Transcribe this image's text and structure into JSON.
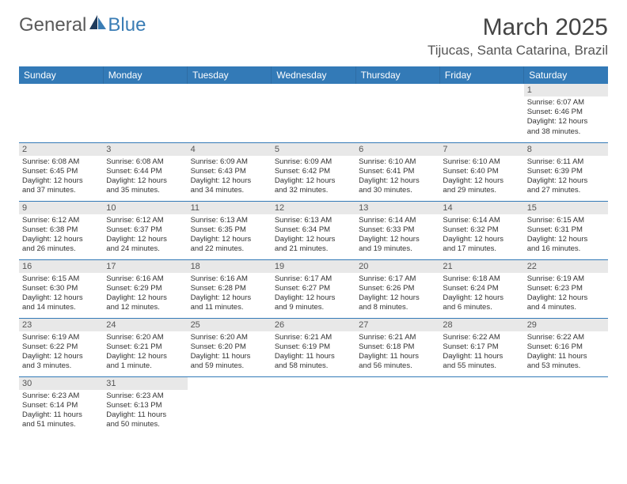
{
  "brand": {
    "part1": "General",
    "part2": "Blue"
  },
  "title": "March 2025",
  "location": "Tijucas, Santa Catarina, Brazil",
  "weekdays": [
    "Sunday",
    "Monday",
    "Tuesday",
    "Wednesday",
    "Thursday",
    "Friday",
    "Saturday"
  ],
  "colors": {
    "header_bg": "#337ab7",
    "header_text": "#ffffff",
    "daynum_bg": "#e8e8e8",
    "border": "#337ab7",
    "brand_blue": "#3a7db5"
  },
  "weeks": [
    [
      null,
      null,
      null,
      null,
      null,
      null,
      {
        "n": "1",
        "sr": "Sunrise: 6:07 AM",
        "ss": "Sunset: 6:46 PM",
        "d1": "Daylight: 12 hours",
        "d2": "and 38 minutes."
      }
    ],
    [
      {
        "n": "2",
        "sr": "Sunrise: 6:08 AM",
        "ss": "Sunset: 6:45 PM",
        "d1": "Daylight: 12 hours",
        "d2": "and 37 minutes."
      },
      {
        "n": "3",
        "sr": "Sunrise: 6:08 AM",
        "ss": "Sunset: 6:44 PM",
        "d1": "Daylight: 12 hours",
        "d2": "and 35 minutes."
      },
      {
        "n": "4",
        "sr": "Sunrise: 6:09 AM",
        "ss": "Sunset: 6:43 PM",
        "d1": "Daylight: 12 hours",
        "d2": "and 34 minutes."
      },
      {
        "n": "5",
        "sr": "Sunrise: 6:09 AM",
        "ss": "Sunset: 6:42 PM",
        "d1": "Daylight: 12 hours",
        "d2": "and 32 minutes."
      },
      {
        "n": "6",
        "sr": "Sunrise: 6:10 AM",
        "ss": "Sunset: 6:41 PM",
        "d1": "Daylight: 12 hours",
        "d2": "and 30 minutes."
      },
      {
        "n": "7",
        "sr": "Sunrise: 6:10 AM",
        "ss": "Sunset: 6:40 PM",
        "d1": "Daylight: 12 hours",
        "d2": "and 29 minutes."
      },
      {
        "n": "8",
        "sr": "Sunrise: 6:11 AM",
        "ss": "Sunset: 6:39 PM",
        "d1": "Daylight: 12 hours",
        "d2": "and 27 minutes."
      }
    ],
    [
      {
        "n": "9",
        "sr": "Sunrise: 6:12 AM",
        "ss": "Sunset: 6:38 PM",
        "d1": "Daylight: 12 hours",
        "d2": "and 26 minutes."
      },
      {
        "n": "10",
        "sr": "Sunrise: 6:12 AM",
        "ss": "Sunset: 6:37 PM",
        "d1": "Daylight: 12 hours",
        "d2": "and 24 minutes."
      },
      {
        "n": "11",
        "sr": "Sunrise: 6:13 AM",
        "ss": "Sunset: 6:35 PM",
        "d1": "Daylight: 12 hours",
        "d2": "and 22 minutes."
      },
      {
        "n": "12",
        "sr": "Sunrise: 6:13 AM",
        "ss": "Sunset: 6:34 PM",
        "d1": "Daylight: 12 hours",
        "d2": "and 21 minutes."
      },
      {
        "n": "13",
        "sr": "Sunrise: 6:14 AM",
        "ss": "Sunset: 6:33 PM",
        "d1": "Daylight: 12 hours",
        "d2": "and 19 minutes."
      },
      {
        "n": "14",
        "sr": "Sunrise: 6:14 AM",
        "ss": "Sunset: 6:32 PM",
        "d1": "Daylight: 12 hours",
        "d2": "and 17 minutes."
      },
      {
        "n": "15",
        "sr": "Sunrise: 6:15 AM",
        "ss": "Sunset: 6:31 PM",
        "d1": "Daylight: 12 hours",
        "d2": "and 16 minutes."
      }
    ],
    [
      {
        "n": "16",
        "sr": "Sunrise: 6:15 AM",
        "ss": "Sunset: 6:30 PM",
        "d1": "Daylight: 12 hours",
        "d2": "and 14 minutes."
      },
      {
        "n": "17",
        "sr": "Sunrise: 6:16 AM",
        "ss": "Sunset: 6:29 PM",
        "d1": "Daylight: 12 hours",
        "d2": "and 12 minutes."
      },
      {
        "n": "18",
        "sr": "Sunrise: 6:16 AM",
        "ss": "Sunset: 6:28 PM",
        "d1": "Daylight: 12 hours",
        "d2": "and 11 minutes."
      },
      {
        "n": "19",
        "sr": "Sunrise: 6:17 AM",
        "ss": "Sunset: 6:27 PM",
        "d1": "Daylight: 12 hours",
        "d2": "and 9 minutes."
      },
      {
        "n": "20",
        "sr": "Sunrise: 6:17 AM",
        "ss": "Sunset: 6:26 PM",
        "d1": "Daylight: 12 hours",
        "d2": "and 8 minutes."
      },
      {
        "n": "21",
        "sr": "Sunrise: 6:18 AM",
        "ss": "Sunset: 6:24 PM",
        "d1": "Daylight: 12 hours",
        "d2": "and 6 minutes."
      },
      {
        "n": "22",
        "sr": "Sunrise: 6:19 AM",
        "ss": "Sunset: 6:23 PM",
        "d1": "Daylight: 12 hours",
        "d2": "and 4 minutes."
      }
    ],
    [
      {
        "n": "23",
        "sr": "Sunrise: 6:19 AM",
        "ss": "Sunset: 6:22 PM",
        "d1": "Daylight: 12 hours",
        "d2": "and 3 minutes."
      },
      {
        "n": "24",
        "sr": "Sunrise: 6:20 AM",
        "ss": "Sunset: 6:21 PM",
        "d1": "Daylight: 12 hours",
        "d2": "and 1 minute."
      },
      {
        "n": "25",
        "sr": "Sunrise: 6:20 AM",
        "ss": "Sunset: 6:20 PM",
        "d1": "Daylight: 11 hours",
        "d2": "and 59 minutes."
      },
      {
        "n": "26",
        "sr": "Sunrise: 6:21 AM",
        "ss": "Sunset: 6:19 PM",
        "d1": "Daylight: 11 hours",
        "d2": "and 58 minutes."
      },
      {
        "n": "27",
        "sr": "Sunrise: 6:21 AM",
        "ss": "Sunset: 6:18 PM",
        "d1": "Daylight: 11 hours",
        "d2": "and 56 minutes."
      },
      {
        "n": "28",
        "sr": "Sunrise: 6:22 AM",
        "ss": "Sunset: 6:17 PM",
        "d1": "Daylight: 11 hours",
        "d2": "and 55 minutes."
      },
      {
        "n": "29",
        "sr": "Sunrise: 6:22 AM",
        "ss": "Sunset: 6:16 PM",
        "d1": "Daylight: 11 hours",
        "d2": "and 53 minutes."
      }
    ],
    [
      {
        "n": "30",
        "sr": "Sunrise: 6:23 AM",
        "ss": "Sunset: 6:14 PM",
        "d1": "Daylight: 11 hours",
        "d2": "and 51 minutes."
      },
      {
        "n": "31",
        "sr": "Sunrise: 6:23 AM",
        "ss": "Sunset: 6:13 PM",
        "d1": "Daylight: 11 hours",
        "d2": "and 50 minutes."
      },
      null,
      null,
      null,
      null,
      null
    ]
  ]
}
